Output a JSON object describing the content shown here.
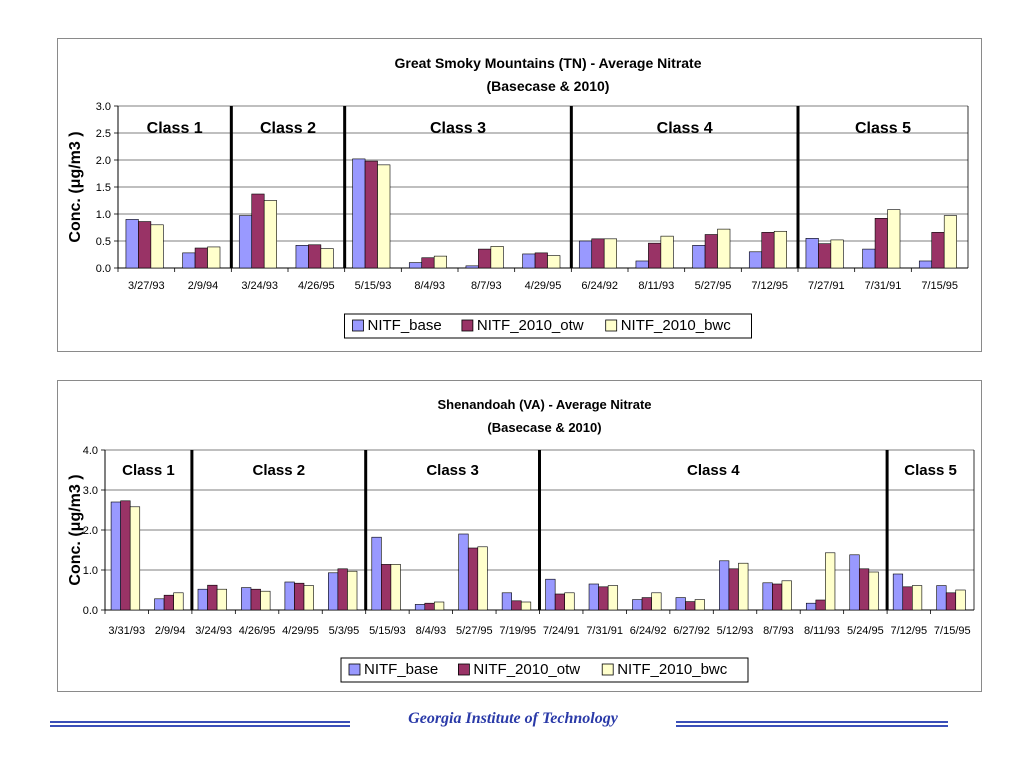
{
  "colors": {
    "base": "#9999ff",
    "otw": "#993366",
    "bwc": "#ffffcc"
  },
  "footer": {
    "text": "Georgia Institute of Technology"
  },
  "chart_data": [
    {
      "type": "bar",
      "title": "Great Smoky Mountains (TN) - Average Nitrate",
      "subtitle": "(Basecase & 2010)",
      "ylabel": "Conc. (μg/m3 )",
      "ylim": [
        0,
        3.0
      ],
      "yticks": [
        "0.0",
        "0.5",
        "1.0",
        "1.5",
        "2.0",
        "2.5",
        "3.0"
      ],
      "categories": [
        "3/27/93",
        "2/9/94",
        "3/24/93",
        "4/26/95",
        "5/15/93",
        "8/4/93",
        "8/7/93",
        "4/29/95",
        "6/24/92",
        "8/11/93",
        "5/27/95",
        "7/12/95",
        "7/27/91",
        "7/31/91",
        "7/15/95"
      ],
      "series": [
        {
          "name": "NITF_base",
          "values": [
            0.9,
            0.28,
            0.97,
            0.42,
            2.02,
            0.1,
            0.04,
            0.26,
            0.5,
            0.13,
            0.42,
            0.3,
            0.55,
            0.35,
            0.13
          ]
        },
        {
          "name": "NITF_2010_otw",
          "values": [
            0.86,
            0.37,
            1.37,
            0.43,
            1.98,
            0.19,
            0.35,
            0.28,
            0.54,
            0.46,
            0.62,
            0.66,
            0.45,
            0.92,
            0.66
          ]
        },
        {
          "name": "NITF_2010_bwc",
          "values": [
            0.8,
            0.39,
            1.25,
            0.36,
            1.91,
            0.22,
            0.4,
            0.23,
            0.54,
            0.59,
            0.72,
            0.68,
            0.52,
            1.08,
            0.97
          ]
        }
      ],
      "classes": [
        {
          "label": "Class 1",
          "start": 0,
          "end": 2
        },
        {
          "label": "Class 2",
          "start": 2,
          "end": 4
        },
        {
          "label": "Class 3",
          "start": 4,
          "end": 8
        },
        {
          "label": "Class 4",
          "start": 8,
          "end": 12
        },
        {
          "label": "Class 5",
          "start": 12,
          "end": 15
        }
      ],
      "grid": true,
      "legend": "bottom"
    },
    {
      "type": "bar",
      "title": "Shenandoah (VA) - Average Nitrate",
      "subtitle": "(Basecase & 2010)",
      "ylabel": "Conc. (μg/m3 )",
      "ylim": [
        0,
        4.0
      ],
      "yticks": [
        "0.0",
        "1.0",
        "2.0",
        "3.0",
        "4.0"
      ],
      "categories": [
        "3/31/93",
        "2/9/94",
        "3/24/93",
        "4/26/95",
        "4/29/95",
        "5/3/95",
        "5/15/93",
        "8/4/93",
        "5/27/95",
        "7/19/95",
        "7/24/91",
        "7/31/91",
        "6/24/92",
        "6/27/92",
        "5/12/93",
        "8/7/93",
        "8/11/93",
        "5/24/95",
        "7/12/95",
        "7/15/95"
      ],
      "series": [
        {
          "name": "NITF_base",
          "values": [
            2.7,
            0.28,
            0.52,
            0.56,
            0.7,
            0.93,
            1.82,
            0.14,
            1.9,
            0.43,
            0.77,
            0.65,
            0.26,
            0.31,
            1.23,
            0.68,
            0.17,
            1.38,
            0.9,
            0.61
          ]
        },
        {
          "name": "NITF_2010_otw",
          "values": [
            2.73,
            0.37,
            0.62,
            0.52,
            0.67,
            1.03,
            1.14,
            0.17,
            1.55,
            0.23,
            0.4,
            0.58,
            0.31,
            0.21,
            1.03,
            0.65,
            0.25,
            1.03,
            0.58,
            0.43
          ]
        },
        {
          "name": "NITF_2010_bwc",
          "values": [
            2.58,
            0.43,
            0.52,
            0.47,
            0.61,
            0.97,
            1.14,
            0.2,
            1.58,
            0.2,
            0.43,
            0.61,
            0.43,
            0.26,
            1.17,
            0.73,
            1.43,
            0.95,
            0.61,
            0.5
          ]
        }
      ],
      "classes": [
        {
          "label": "Class 1",
          "start": 0,
          "end": 2
        },
        {
          "label": "Class 2",
          "start": 2,
          "end": 6
        },
        {
          "label": "Class 3",
          "start": 6,
          "end": 10
        },
        {
          "label": "Class 4",
          "start": 10,
          "end": 18
        },
        {
          "label": "Class 5",
          "start": 18,
          "end": 20
        }
      ],
      "grid": true,
      "legend": "bottom"
    }
  ]
}
